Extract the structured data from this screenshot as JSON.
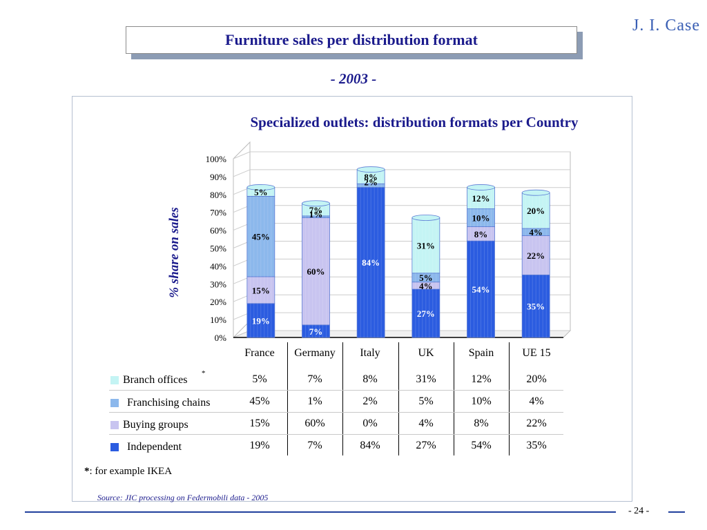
{
  "header": {
    "title": "Furniture sales per distribution format",
    "logo": "J. I. Case",
    "year": "- 2003 -"
  },
  "chart_data": {
    "type": "bar",
    "stacked": true,
    "title": "Specialized outlets: distribution formats per Country",
    "ylabel": "% share on sales",
    "xlabel": "",
    "ylim": [
      0,
      100
    ],
    "yticks": [
      "0%",
      "10%",
      "20%",
      "30%",
      "40%",
      "50%",
      "60%",
      "70%",
      "80%",
      "90%",
      "100%"
    ],
    "categories": [
      "France",
      "Germany",
      "Italy",
      "UK",
      "Spain",
      "UE 15"
    ],
    "series": [
      {
        "name": "Independent",
        "color": "#2b5ce0",
        "values": [
          19,
          7,
          84,
          27,
          54,
          35
        ]
      },
      {
        "name": "Buying groups",
        "color": "#c8c4f0",
        "values": [
          15,
          60,
          0,
          4,
          8,
          22
        ]
      },
      {
        "name": "Franchising chains",
        "color": "#8cb8ec",
        "values": [
          45,
          1,
          2,
          5,
          10,
          4
        ]
      },
      {
        "name": "Branch offices",
        "color": "#c4f4f4",
        "values": [
          5,
          7,
          8,
          31,
          12,
          20
        ]
      }
    ],
    "legend_position": "bottom table"
  },
  "table": {
    "rows": [
      {
        "label": "Branch offices",
        "marker": "*",
        "color": "#c4f4f4",
        "values": [
          "5%",
          "7%",
          "8%",
          "31%",
          "12%",
          "20%"
        ]
      },
      {
        "label": "Franchising chains",
        "color": "#8cb8ec",
        "values": [
          "45%",
          "1%",
          "2%",
          "5%",
          "10%",
          "4%"
        ]
      },
      {
        "label": "Buying groups",
        "color": "#c8c4f0",
        "values": [
          "15%",
          "60%",
          "0%",
          "4%",
          "8%",
          "22%"
        ]
      },
      {
        "label": "Independent",
        "color": "#2b5ce0",
        "values": [
          "19%",
          "7%",
          "84%",
          "27%",
          "54%",
          "35%"
        ]
      }
    ]
  },
  "footnote": {
    "marker": "*",
    "text": ": for example IKEA"
  },
  "source": "Source: JIC processing on Federmobili data - 2005",
  "page_number": "- 24 -"
}
